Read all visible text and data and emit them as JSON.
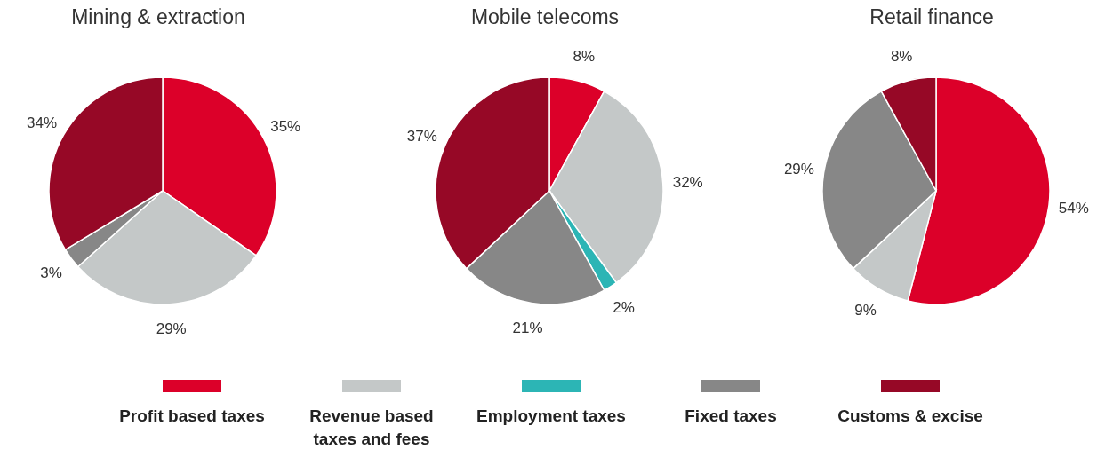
{
  "chart_data": [
    {
      "type": "pie",
      "title": "Mining & extraction",
      "categories": [
        "Profit based taxes",
        "Revenue based taxes and fees",
        "Employment taxes",
        "Fixed taxes",
        "Customs & excise"
      ],
      "values": [
        35,
        29,
        null,
        3,
        34
      ],
      "value_labels": [
        "35%",
        "29%",
        null,
        "3%",
        "34%"
      ],
      "colors": [
        "#dc0029",
        "#c4c8c8",
        "#2cb5b5",
        "#878787",
        "#960826"
      ],
      "legend": "bottom"
    },
    {
      "type": "pie",
      "title": "Mobile telecoms",
      "categories": [
        null,
        null,
        null,
        null,
        null
      ],
      "values": [
        8,
        32,
        2,
        21,
        37
      ],
      "value_labels": [
        "8%",
        "32%",
        "2%",
        "21%",
        "37%"
      ],
      "colors": [
        "#dc0029",
        "#c4c8c8",
        "#2cb5b5",
        "#878787",
        "#960826"
      ]
    },
    {
      "type": "pie",
      "title": "Retail finance",
      "categories": [
        null,
        null,
        null,
        null,
        null
      ],
      "values": [
        54,
        9,
        null,
        29,
        8
      ],
      "value_labels": [
        "54%",
        "9%",
        null,
        "29%",
        "8%"
      ],
      "colors": [
        "#dc0029",
        "#c4c8c8",
        "#2cb5b5",
        "#878787",
        "#960826"
      ]
    }
  ]
}
